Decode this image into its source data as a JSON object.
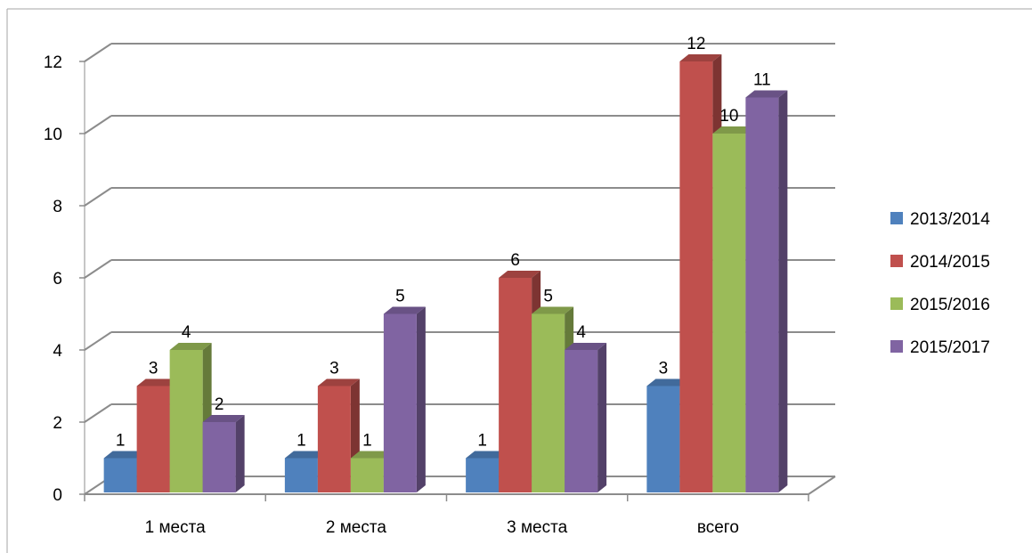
{
  "chart_data": {
    "type": "bar",
    "title": "",
    "xlabel": "",
    "ylabel": "",
    "categories": [
      "1 места",
      "2 места",
      "3 места",
      "всего"
    ],
    "series": [
      {
        "name": "2013/2014",
        "values": [
          1,
          1,
          1,
          3
        ],
        "color": "#4F81BD"
      },
      {
        "name": "2014/2015",
        "values": [
          3,
          3,
          6,
          12
        ],
        "color": "#C0504D"
      },
      {
        "name": "2015/2016",
        "values": [
          4,
          1,
          5,
          10
        ],
        "color": "#9BBB59"
      },
      {
        "name": "2015/2017",
        "values": [
          2,
          5,
          4,
          11
        ],
        "color": "#8064A2"
      }
    ],
    "yticks": [
      "0",
      "2",
      "4",
      "6",
      "8",
      "10",
      "12"
    ],
    "ylim": [
      0,
      12
    ],
    "grid": true,
    "three_d": true,
    "data_labels": true,
    "legend_position": "right"
  }
}
